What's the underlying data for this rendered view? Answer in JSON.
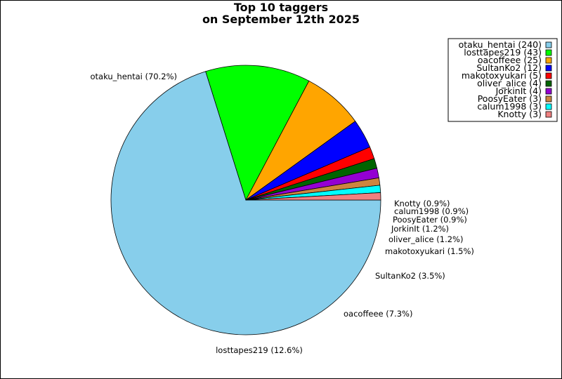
{
  "chart_data": {
    "type": "pie",
    "title": "Top 10 taggers\non September 12th 2025",
    "slices": [
      {
        "name": "otaku_hentai",
        "value": 240,
        "pct_label": "otaku_hentai (70.2%)",
        "legend_label": "otaku_hentai (240)",
        "color": "#87CEEB"
      },
      {
        "name": "losttapes219",
        "value": 43,
        "pct_label": "losttapes219 (12.6%)",
        "legend_label": "losttapes219 (43)",
        "color": "#00FF00"
      },
      {
        "name": "oacoffeee",
        "value": 25,
        "pct_label": "oacoffeee (7.3%)",
        "legend_label": "oacoffeee (25)",
        "color": "#FFA500"
      },
      {
        "name": "SultanKo2",
        "value": 12,
        "pct_label": "SultanKo2 (3.5%)",
        "legend_label": "SultanKo2 (12)",
        "color": "#0000FF"
      },
      {
        "name": "makotoxyukari",
        "value": 5,
        "pct_label": "makotoxyukari (1.5%)",
        "legend_label": "makotoxyukari (5)",
        "color": "#FF0000"
      },
      {
        "name": "oliver_alice",
        "value": 4,
        "pct_label": "oliver_alice (1.2%)",
        "legend_label": "oliver_alice (4)",
        "color": "#006400"
      },
      {
        "name": "JorkinIt",
        "value": 4,
        "pct_label": "JorkinIt (1.2%)",
        "legend_label": "JorkinIt (4)",
        "color": "#9400D3"
      },
      {
        "name": "PoosyEater",
        "value": 3,
        "pct_label": "PoosyEater (0.9%)",
        "legend_label": "PoosyEater (3)",
        "color": "#CD853F"
      },
      {
        "name": "calum1998",
        "value": 3,
        "pct_label": "calum1998 (0.9%)",
        "legend_label": "calum1998 (3)",
        "color": "#00FFFF"
      },
      {
        "name": "Knotty",
        "value": 3,
        "pct_label": "Knotty (0.9%)",
        "legend_label": "Knotty (3)",
        "color": "#F08080"
      }
    ],
    "direction": "clockwise",
    "start_angle": "3 o'clock",
    "legend_position": "top-right"
  }
}
